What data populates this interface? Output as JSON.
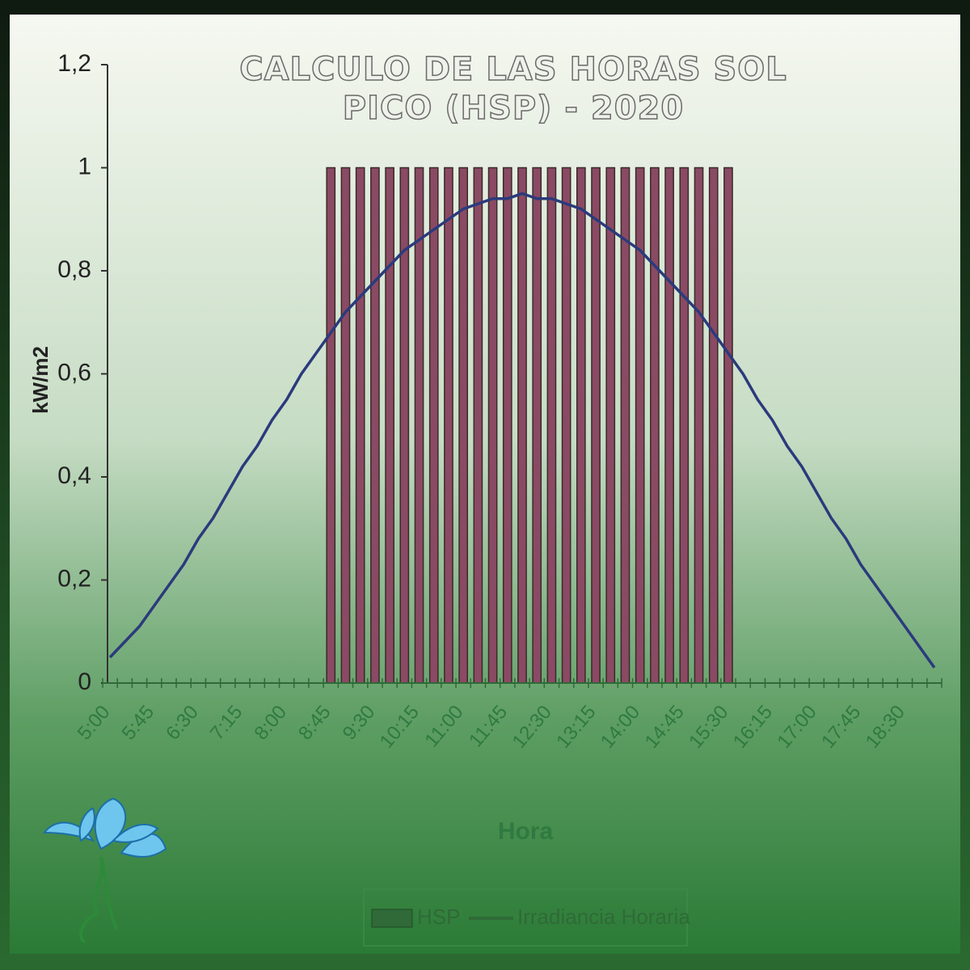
{
  "chart_data": {
    "type": "bar-line",
    "title": "CALCULO DE LAS HORAS SOL PICO (HSP) - 2020",
    "x_label": "Hora",
    "y_label": "kW/m2",
    "categories": [
      "5:00",
      null,
      null,
      "5:45",
      null,
      null,
      "6:30",
      null,
      null,
      "7:15",
      null,
      null,
      "8:00",
      null,
      null,
      "8:45",
      null,
      null,
      "9:30",
      null,
      null,
      "10:15",
      null,
      null,
      "11:00",
      null,
      null,
      "11:45",
      null,
      null,
      "12:30",
      null,
      null,
      "13:15",
      null,
      null,
      "14:00",
      null,
      null,
      "14:45",
      null,
      null,
      "15:30",
      null,
      null,
      "16:15",
      null,
      null,
      "17:00",
      null,
      null,
      "17:45",
      null,
      null,
      "18:30",
      null,
      null
    ],
    "series": [
      {
        "name": "HSP",
        "type": "bar",
        "color": "#8a4a63",
        "values": [
          0,
          0,
          0,
          0,
          0,
          0,
          0,
          0,
          0,
          0,
          0,
          0,
          0,
          0,
          0,
          1,
          1,
          1,
          1,
          1,
          1,
          1,
          1,
          1,
          1,
          1,
          1,
          1,
          1,
          1,
          1,
          1,
          1,
          1,
          1,
          1,
          1,
          1,
          1,
          1,
          1,
          1,
          1,
          0,
          0,
          0,
          0,
          0,
          0,
          0,
          0,
          0,
          0,
          0,
          0,
          0,
          0
        ]
      },
      {
        "name": "Irradiancia Horaria",
        "type": "line",
        "color": "#2b3a7c",
        "values": [
          0.05,
          0.08,
          0.11,
          0.15,
          0.19,
          0.23,
          0.28,
          0.32,
          0.37,
          0.42,
          0.46,
          0.51,
          0.55,
          0.6,
          0.64,
          0.68,
          0.72,
          0.75,
          0.78,
          0.81,
          0.84,
          0.86,
          0.88,
          0.9,
          0.92,
          0.93,
          0.94,
          0.94,
          0.95,
          0.94,
          0.94,
          0.93,
          0.92,
          0.9,
          0.88,
          0.86,
          0.84,
          0.81,
          0.78,
          0.75,
          0.72,
          0.68,
          0.64,
          0.6,
          0.55,
          0.51,
          0.46,
          0.42,
          0.37,
          0.32,
          0.28,
          0.23,
          0.19,
          0.15,
          0.11,
          0.07,
          0.03
        ]
      }
    ],
    "ylim": [
      0,
      1.2
    ],
    "yticks": [
      0,
      {
        "value": 0.2,
        "label": "0,2"
      },
      {
        "value": 0.4,
        "label": "0,4"
      },
      {
        "value": 0.6,
        "label": "0,6"
      },
      {
        "value": 0.8,
        "label": "0,8"
      },
      1,
      {
        "value": 1.2,
        "label": "1,2"
      }
    ],
    "legend": "bottom"
  }
}
